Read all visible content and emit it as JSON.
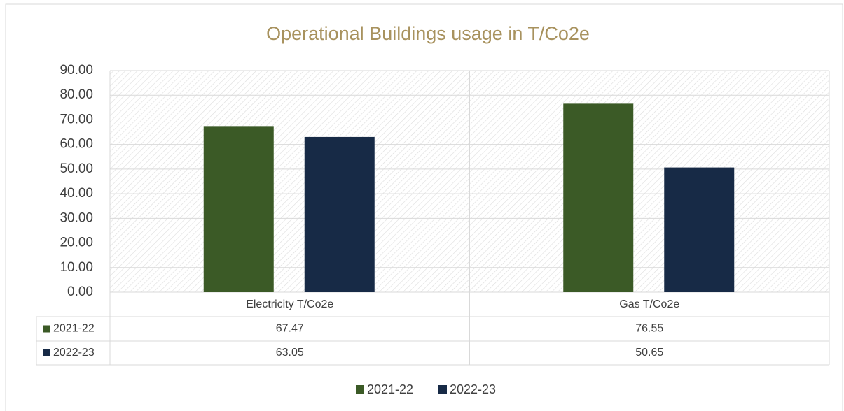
{
  "chart_data": {
    "type": "bar",
    "title": "Operational Buildings usage in T/Co2e",
    "categories": [
      "Electricity T/Co2e",
      "Gas T/Co2e"
    ],
    "series": [
      {
        "name": "2021-22",
        "color": "#3b5a26",
        "values": [
          67.47,
          76.55
        ]
      },
      {
        "name": "2022-23",
        "color": "#172a46",
        "values": [
          63.05,
          50.65
        ]
      }
    ],
    "ylim": [
      0,
      90
    ],
    "yticks": [
      {
        "value": 0,
        "label": "0.00"
      },
      {
        "value": 10,
        "label": "10.00"
      },
      {
        "value": 20,
        "label": "20.00"
      },
      {
        "value": 30,
        "label": "30.00"
      },
      {
        "value": 40,
        "label": "40.00"
      },
      {
        "value": 50,
        "label": "50.00"
      },
      {
        "value": 60,
        "label": "60.00"
      },
      {
        "value": 70,
        "label": "70.00"
      },
      {
        "value": 80,
        "label": "80.00"
      },
      {
        "value": 90,
        "label": "90.00"
      }
    ],
    "grid": true,
    "legend": "bottom"
  }
}
